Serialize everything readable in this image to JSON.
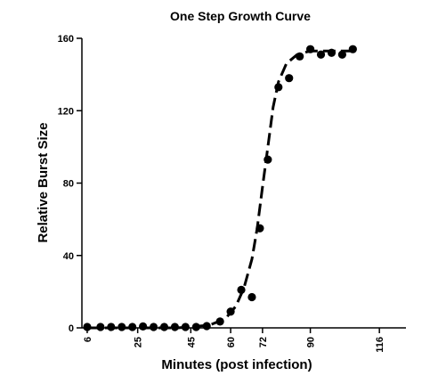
{
  "chart_data": {
    "type": "scatter",
    "title": "One Step Growth Curve",
    "xlabel": "Minutes (post infection)",
    "ylabel": "Relative Burst Size",
    "xlim": [
      4,
      126
    ],
    "ylim": [
      0,
      160
    ],
    "xticks": [
      6,
      25,
      45,
      60,
      72,
      90,
      116
    ],
    "xtick_labels": [
      "6",
      "25",
      "45",
      "60",
      "72",
      "90",
      "116"
    ],
    "yticks": [
      0,
      40,
      80,
      120,
      160
    ],
    "ytick_labels": [
      "0",
      "40",
      "80",
      "120",
      "160"
    ],
    "grid": false,
    "legend": "none",
    "series": [
      {
        "points": [
          {
            "x": 6,
            "y": 0.5
          },
          {
            "x": 11,
            "y": 0.5
          },
          {
            "x": 15,
            "y": 0.5
          },
          {
            "x": 19,
            "y": 0.5
          },
          {
            "x": 23,
            "y": 0.5
          },
          {
            "x": 27,
            "y": 0.8
          },
          {
            "x": 31,
            "y": 0.5
          },
          {
            "x": 35,
            "y": 0.5
          },
          {
            "x": 39,
            "y": 0.5
          },
          {
            "x": 43,
            "y": 0.5
          },
          {
            "x": 47,
            "y": 0.5
          },
          {
            "x": 51,
            "y": 1
          },
          {
            "x": 56,
            "y": 3.5
          },
          {
            "x": 60,
            "y": 9
          },
          {
            "x": 64,
            "y": 21
          },
          {
            "x": 68,
            "y": 17
          },
          {
            "x": 71,
            "y": 55
          },
          {
            "x": 74,
            "y": 93
          },
          {
            "x": 78,
            "y": 133
          },
          {
            "x": 82,
            "y": 138
          },
          {
            "x": 86,
            "y": 150
          },
          {
            "x": 90,
            "y": 154
          },
          {
            "x": 94,
            "y": 151
          },
          {
            "x": 98,
            "y": 152
          },
          {
            "x": 102,
            "y": 151
          },
          {
            "x": 106,
            "y": 154
          }
        ]
      }
    ],
    "fit": {
      "style": "dashed",
      "points": [
        {
          "x": 6,
          "y": 0
        },
        {
          "x": 40,
          "y": 0
        },
        {
          "x": 52,
          "y": 1.5
        },
        {
          "x": 58,
          "y": 5
        },
        {
          "x": 62,
          "y": 12
        },
        {
          "x": 65,
          "y": 22
        },
        {
          "x": 68,
          "y": 38
        },
        {
          "x": 70,
          "y": 55
        },
        {
          "x": 72,
          "y": 78
        },
        {
          "x": 74,
          "y": 100
        },
        {
          "x": 76,
          "y": 122
        },
        {
          "x": 78,
          "y": 136
        },
        {
          "x": 81,
          "y": 146
        },
        {
          "x": 85,
          "y": 151
        },
        {
          "x": 90,
          "y": 153
        },
        {
          "x": 106,
          "y": 153
        }
      ]
    }
  }
}
